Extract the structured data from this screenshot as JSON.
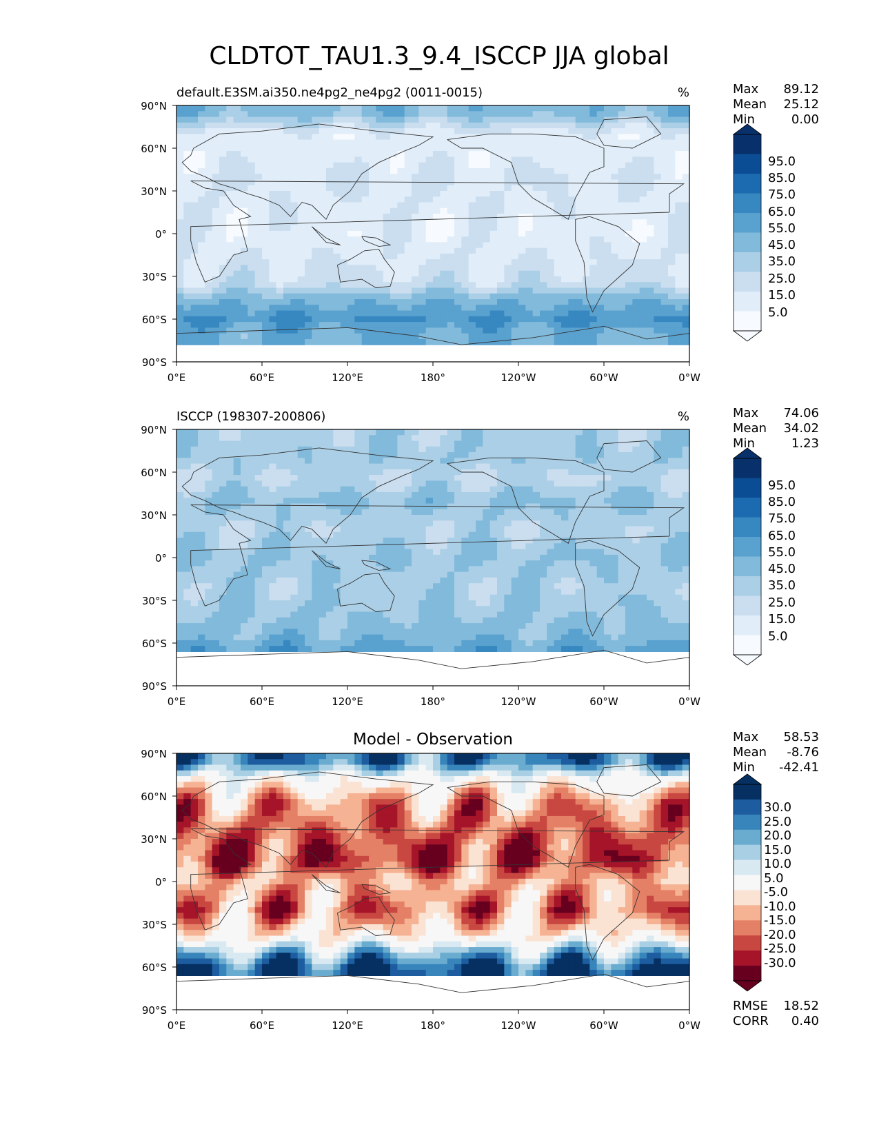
{
  "figure_title": "CLDTOT_TAU1.3_9.4_ISCCP JJA global",
  "colors": {
    "blues": [
      "#f7fbff",
      "#e1edf8",
      "#cadef0",
      "#abcfe6",
      "#82badb",
      "#59a1cf",
      "#3787c0",
      "#1c6aaf",
      "#0b4d94",
      "#08306b"
    ],
    "rdbu": [
      "#67001f",
      "#a51429",
      "#c94741",
      "#e48066",
      "#f6b394",
      "#fbe3d4",
      "#f7f7f7",
      "#d9e9f1",
      "#a8cfe3",
      "#6aacd0",
      "#3885bc",
      "#1c5c9f",
      "#053061"
    ],
    "land": "#333333"
  },
  "chart_data": [
    {
      "type": "heatmap",
      "panel": "model",
      "title_left": "default.E3SM.ai350.ne4pg2_ne4pg2 (0011-0015)",
      "title_right": "%",
      "x_ticks": [
        "0°E",
        "60°E",
        "120°E",
        "180°",
        "120°W",
        "60°W",
        "0°W"
      ],
      "y_ticks": [
        "90°N",
        "60°N",
        "30°N",
        "0°",
        "30°S",
        "60°S",
        "90°S"
      ],
      "stats": [
        {
          "label": "Max",
          "value": "89.12"
        },
        {
          "label": "Mean",
          "value": "25.12"
        },
        {
          "label": "Min",
          "value": "0.00"
        }
      ],
      "colorbar": {
        "palette": "blues",
        "levels": [
          0,
          10,
          20,
          30,
          40,
          50,
          60,
          70,
          80,
          90,
          100
        ],
        "labels": [
          "95.0",
          "85.0",
          "75.0",
          "65.0",
          "55.0",
          "45.0",
          "35.0",
          "25.0",
          "15.0",
          "5.0"
        ]
      },
      "field": {
        "lat_band_values": [
          45,
          15,
          15,
          20,
          18,
          15,
          20,
          25,
          45,
          60,
          50
        ],
        "lat_band_centers": [
          85,
          70,
          55,
          40,
          20,
          0,
          -20,
          -35,
          -45,
          -60,
          -70
        ],
        "valid_lat_range": [
          -76,
          90
        ]
      }
    },
    {
      "type": "heatmap",
      "panel": "observation",
      "title_left": "ISCCP (198307-200806)",
      "title_right": "%",
      "x_ticks": [
        "0°E",
        "60°E",
        "120°E",
        "180°",
        "120°W",
        "60°W",
        "0°W"
      ],
      "y_ticks": [
        "90°N",
        "60°N",
        "30°N",
        "0°",
        "30°S",
        "60°S",
        "90°S"
      ],
      "stats": [
        {
          "label": "Max",
          "value": "74.06"
        },
        {
          "label": "Mean",
          "value": "34.02"
        },
        {
          "label": "Min",
          "value": "1.23"
        }
      ],
      "colorbar": {
        "palette": "blues",
        "levels": [
          0,
          10,
          20,
          30,
          40,
          50,
          60,
          70,
          80,
          90,
          100
        ],
        "labels": [
          "95.0",
          "85.0",
          "75.0",
          "65.0",
          "55.0",
          "45.0",
          "35.0",
          "25.0",
          "15.0",
          "5.0"
        ]
      },
      "field": {
        "lat_band_values": [
          35,
          38,
          30,
          42,
          32,
          40,
          35,
          40,
          45,
          55
        ],
        "lat_band_centers": [
          85,
          70,
          55,
          40,
          20,
          0,
          -20,
          -40,
          -55,
          -65
        ],
        "valid_lat_range": [
          -67,
          90
        ]
      }
    },
    {
      "type": "heatmap",
      "panel": "difference",
      "title_center": "Model - Observation",
      "x_ticks": [
        "0°E",
        "60°E",
        "120°E",
        "180°",
        "120°W",
        "60°W",
        "0°W"
      ],
      "y_ticks": [
        "90°N",
        "60°N",
        "30°N",
        "0°",
        "30°S",
        "60°S",
        "90°S"
      ],
      "stats": [
        {
          "label": "Max",
          "value": "58.53"
        },
        {
          "label": "Mean",
          "value": "-8.76"
        },
        {
          "label": "Min",
          "value": "-42.41"
        }
      ],
      "colorbar": {
        "palette": "rdbu",
        "levels": [
          -35,
          -30,
          -25,
          -20,
          -15,
          -10,
          -5,
          5,
          10,
          15,
          20,
          25,
          30,
          35
        ],
        "labels": [
          "30.0",
          "25.0",
          "20.0",
          "15.0",
          "10.0",
          "5.0",
          "-5.0",
          "-10.0",
          "-15.0",
          "-20.0",
          "-25.0",
          "-30.0"
        ]
      },
      "field": {
        "lat_band_values": [
          25,
          0,
          -15,
          -20,
          -25,
          -12,
          -18,
          -5,
          15,
          30
        ],
        "lat_band_centers": [
          85,
          72,
          55,
          35,
          15,
          0,
          -20,
          -38,
          -50,
          -62
        ],
        "valid_lat_range": [
          -67,
          90
        ]
      },
      "metrics": [
        {
          "label": "RMSE",
          "value": "18.52"
        },
        {
          "label": "CORR",
          "value": "0.40"
        }
      ]
    }
  ]
}
